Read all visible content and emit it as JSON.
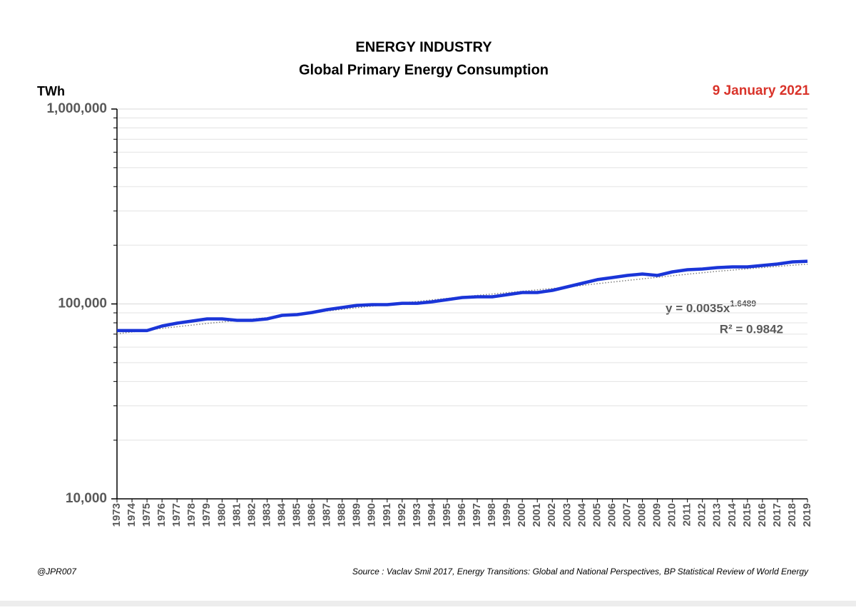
{
  "chart_data": {
    "type": "line",
    "title": "ENERGY INDUSTRY",
    "subtitle": "Global Primary Energy Consumption",
    "y_label": "TWh",
    "date": "9 January 2021",
    "equation": "y = 0.0035x",
    "equation_exponent": "1.6489",
    "r_squared": "R² = 0.9842",
    "credit": "@JPR007",
    "source": "Source : Vaclav Smil 2017, Energy Transitions: Global and National Perspectives,  BP Statistical Review of World Energy",
    "categories": [
      "1973",
      "1974",
      "1975",
      "1976",
      "1977",
      "1978",
      "1979",
      "1980",
      "1981",
      "1982",
      "1983",
      "1984",
      "1985",
      "1986",
      "1987",
      "1988",
      "1989",
      "1990",
      "1991",
      "1992",
      "1993",
      "1994",
      "1995",
      "1996",
      "1997",
      "1998",
      "1999",
      "2000",
      "2001",
      "2002",
      "2003",
      "2004",
      "2005",
      "2006",
      "2007",
      "2008",
      "2009",
      "2010",
      "2011",
      "2012",
      "2013",
      "2014",
      "2015",
      "2016",
      "2017",
      "2018",
      "2019"
    ],
    "series": [
      {
        "color": "#1a35d8",
        "style": "solid",
        "values": [
          73000,
          73000,
          73000,
          77000,
          79700,
          81700,
          83800,
          83800,
          82400,
          82400,
          83800,
          87400,
          88100,
          90400,
          93500,
          95900,
          98300,
          99200,
          99200,
          100800,
          100800,
          102600,
          105200,
          107900,
          108800,
          108800,
          111600,
          114400,
          114400,
          117300,
          122400,
          127600,
          133200,
          136500,
          140000,
          142400,
          140000,
          146000,
          149800,
          151000,
          153600,
          154900,
          154900,
          157500,
          160200,
          164300,
          165600
        ]
      },
      {
        "color": "#7f7f7f",
        "style": "dotted",
        "values": [
          70200,
          71800,
          73400,
          74900,
          76400,
          77900,
          79400,
          80800,
          82200,
          83600,
          85000,
          86800,
          88500,
          90300,
          92000,
          93800,
          95600,
          97400,
          99200,
          101100,
          103000,
          104900,
          106800,
          108700,
          110600,
          112400,
          114300,
          116200,
          118100,
          120000,
          122000,
          124500,
          127000,
          129500,
          132000,
          134500,
          137000,
          139500,
          142000,
          144500,
          147000,
          149200,
          151400,
          153600,
          155800,
          157900,
          160000
        ]
      }
    ],
    "log_scale": true,
    "grid": true,
    "ylim": [
      10000,
      1000000
    ],
    "yticks": [
      {
        "value": 10000,
        "label": "10,000"
      },
      {
        "value": 100000,
        "label": "100,000"
      },
      {
        "value": 1000000,
        "label": "1,000,000"
      }
    ],
    "yminorticks": [
      20000,
      30000,
      40000,
      50000,
      60000,
      70000,
      80000,
      90000,
      200000,
      300000,
      400000,
      500000,
      600000,
      700000,
      800000,
      900000
    ]
  }
}
